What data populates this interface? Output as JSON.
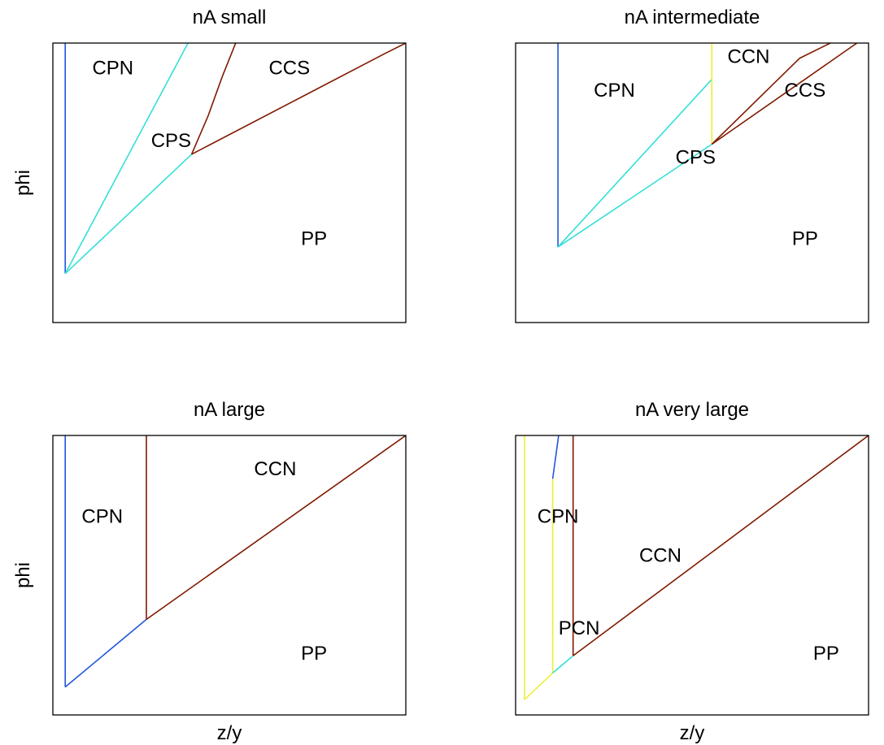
{
  "figure": {
    "rows": 2,
    "cols": 2
  },
  "colors": {
    "blue": "#2255dd",
    "cyan": "#33e0d8",
    "yellow": "#eeee33",
    "brown": "#801a00",
    "frame": "#000000"
  },
  "chart_data": [
    {
      "type": "line",
      "title": "nA small",
      "xlabel": "",
      "ylabel": "phi",
      "xlim": [
        0,
        100
      ],
      "ylim": [
        0,
        100
      ],
      "xticks": [],
      "yticks": [],
      "grid": false,
      "legend": "none",
      "series": [
        {
          "color": "blue",
          "x": [
            3.5,
            3.5
          ],
          "y": [
            100,
            17.5
          ]
        },
        {
          "color": "cyan",
          "x": [
            3.5,
            38.3
          ],
          "y": [
            17.5,
            100
          ]
        },
        {
          "color": "cyan",
          "x": [
            3.5,
            39.3
          ],
          "y": [
            17.5,
            60.2
          ]
        },
        {
          "color": "brown",
          "x": [
            39.3,
            44,
            48,
            51.8
          ],
          "y": [
            60.2,
            74,
            88,
            100
          ]
        },
        {
          "color": "brown",
          "x": [
            39.3,
            94,
            100
          ],
          "y": [
            60.2,
            96.2,
            100
          ]
        }
      ],
      "labels": [
        {
          "text": "CPN",
          "x": 17,
          "y": 91
        },
        {
          "text": "CCS",
          "x": 67,
          "y": 91
        },
        {
          "text": "CPS",
          "x": 33.5,
          "y": 65
        },
        {
          "text": "PP",
          "x": 74,
          "y": 30
        }
      ]
    },
    {
      "type": "line",
      "title": "nA intermediate",
      "xlabel": "",
      "ylabel": "",
      "xlim": [
        0,
        100
      ],
      "ylim": [
        0,
        100
      ],
      "xticks": [],
      "yticks": [],
      "grid": false,
      "legend": "none",
      "series": [
        {
          "color": "blue",
          "x": [
            12,
            12
          ],
          "y": [
            100,
            27
          ]
        },
        {
          "color": "cyan",
          "x": [
            12,
            55.6
          ],
          "y": [
            27,
            87
          ]
        },
        {
          "color": "cyan",
          "x": [
            12,
            55.6
          ],
          "y": [
            27,
            63.8
          ]
        },
        {
          "color": "yellow",
          "x": [
            55.6,
            55.6
          ],
          "y": [
            100,
            63.8
          ]
        },
        {
          "color": "brown",
          "x": [
            55.6,
            96.7
          ],
          "y": [
            63.8,
            100
          ]
        },
        {
          "color": "brown",
          "x": [
            55.6,
            80.5,
            89.2
          ],
          "y": [
            63.8,
            94.6,
            100
          ]
        }
      ],
      "labels": [
        {
          "text": "CCN",
          "x": 66,
          "y": 95
        },
        {
          "text": "CPN",
          "x": 28,
          "y": 83
        },
        {
          "text": "CCS",
          "x": 82,
          "y": 83
        },
        {
          "text": "CPS",
          "x": 51,
          "y": 59
        },
        {
          "text": "PP",
          "x": 82,
          "y": 30
        }
      ]
    },
    {
      "type": "line",
      "title": "nA large",
      "xlabel": "z/y",
      "ylabel": "phi",
      "xlim": [
        0,
        100
      ],
      "ylim": [
        0,
        100
      ],
      "xticks": [],
      "yticks": [],
      "grid": false,
      "legend": "none",
      "series": [
        {
          "color": "blue",
          "x": [
            3.5,
            3.5
          ],
          "y": [
            100,
            10
          ]
        },
        {
          "color": "blue",
          "x": [
            3.5,
            26.5
          ],
          "y": [
            10,
            34.2
          ]
        },
        {
          "color": "brown",
          "x": [
            26.5,
            26.5
          ],
          "y": [
            100,
            34.2
          ]
        },
        {
          "color": "brown",
          "x": [
            26.5,
            100
          ],
          "y": [
            34.2,
            100
          ]
        }
      ],
      "labels": [
        {
          "text": "CCN",
          "x": 63,
          "y": 88
        },
        {
          "text": "CPN",
          "x": 14,
          "y": 71
        },
        {
          "text": "PP",
          "x": 74,
          "y": 22
        }
      ]
    },
    {
      "type": "line",
      "title": "nA very large",
      "xlabel": "z/y",
      "ylabel": "",
      "xlim": [
        0,
        100
      ],
      "ylim": [
        0,
        100
      ],
      "xticks": [],
      "yticks": [],
      "grid": false,
      "legend": "none",
      "series": [
        {
          "color": "yellow",
          "x": [
            2.5,
            2.5
          ],
          "y": [
            100,
            5.5
          ]
        },
        {
          "color": "yellow",
          "x": [
            2.5,
            10.5
          ],
          "y": [
            5.5,
            15
          ]
        },
        {
          "color": "yellow",
          "x": [
            10.5,
            10.5
          ],
          "y": [
            15,
            84.5
          ]
        },
        {
          "color": "blue",
          "x": [
            10.5,
            12.2
          ],
          "y": [
            84.5,
            100
          ]
        },
        {
          "color": "cyan",
          "x": [
            10.5,
            16.3
          ],
          "y": [
            15,
            21.2
          ]
        },
        {
          "color": "brown",
          "x": [
            16.3,
            16.3
          ],
          "y": [
            100,
            21.2
          ]
        },
        {
          "color": "brown",
          "x": [
            16.3,
            100
          ],
          "y": [
            21.2,
            100
          ]
        }
      ],
      "labels": [
        {
          "text": "CPN",
          "x": 12,
          "y": 71
        },
        {
          "text": "CCN",
          "x": 41,
          "y": 57
        },
        {
          "text": "PCN",
          "x": 18,
          "y": 31
        },
        {
          "text": "PP",
          "x": 88,
          "y": 22
        }
      ]
    }
  ]
}
